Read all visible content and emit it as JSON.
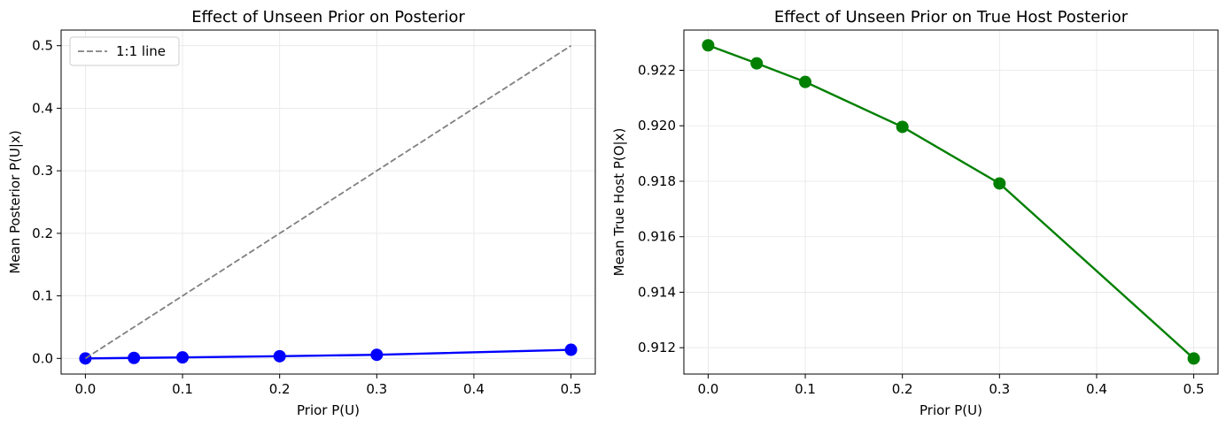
{
  "chart_data": [
    {
      "type": "line",
      "title": "Effect of Unseen Prior on Posterior",
      "xlabel": "Prior P(U)",
      "ylabel": "Mean Posterior P(U|x)",
      "xlim": [
        -0.025,
        0.525
      ],
      "ylim": [
        -0.025,
        0.525
      ],
      "xticks": [
        0.0,
        0.1,
        0.2,
        0.3,
        0.4,
        0.5
      ],
      "xtick_labels": [
        "0.0",
        "0.1",
        "0.2",
        "0.3",
        "0.4",
        "0.5"
      ],
      "yticks": [
        0.0,
        0.1,
        0.2,
        0.3,
        0.4,
        0.5
      ],
      "ytick_labels": [
        "0.0",
        "0.1",
        "0.2",
        "0.3",
        "0.4",
        "0.5"
      ],
      "grid": true,
      "legend": "top-left",
      "series": [
        {
          "x": [
            0.0,
            0.05,
            0.1,
            0.2,
            0.3,
            0.5
          ],
          "values": [
            0.0,
            0.0008,
            0.0016,
            0.0035,
            0.0058,
            0.0138
          ],
          "color": "#0000ff",
          "style": "solid-markers"
        },
        {
          "name": "1:1 line",
          "x": [
            0.0,
            0.5
          ],
          "values": [
            0.0,
            0.5
          ],
          "color": "#808080",
          "style": "dashed"
        }
      ]
    },
    {
      "type": "line",
      "title": "Effect of Unseen Prior on True Host Posterior",
      "xlabel": "Prior P(U)",
      "ylabel": "Mean True Host P(O|x)",
      "xlim": [
        -0.025,
        0.525
      ],
      "ylim": [
        0.91105,
        0.92345
      ],
      "xticks": [
        0.0,
        0.1,
        0.2,
        0.3,
        0.4,
        0.5
      ],
      "xtick_labels": [
        "0.0",
        "0.1",
        "0.2",
        "0.3",
        "0.4",
        "0.5"
      ],
      "yticks": [
        0.912,
        0.914,
        0.916,
        0.918,
        0.92,
        0.922
      ],
      "ytick_labels": [
        "0.912",
        "0.914",
        "0.916",
        "0.918",
        "0.920",
        "0.922"
      ],
      "grid": true,
      "series": [
        {
          "x": [
            0.0,
            0.05,
            0.1,
            0.2,
            0.3,
            0.5
          ],
          "values": [
            0.9229,
            0.92225,
            0.92158,
            0.91996,
            0.91792,
            0.91161
          ],
          "color": "#008000",
          "style": "solid-markers"
        }
      ]
    }
  ]
}
